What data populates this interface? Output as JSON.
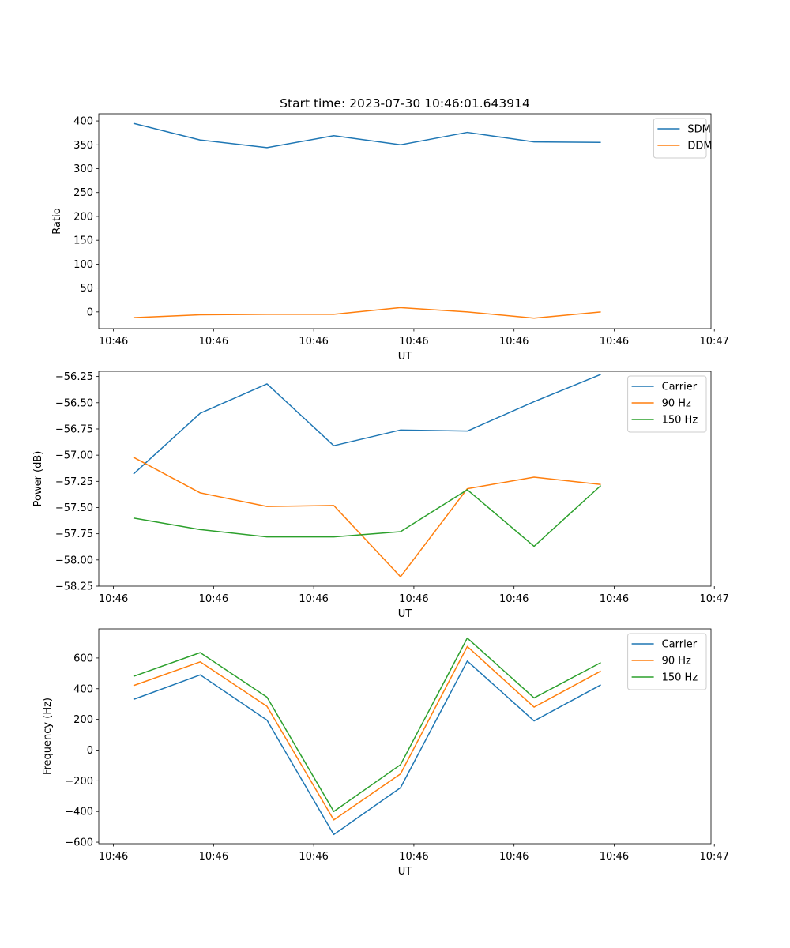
{
  "figure": {
    "title": "Start time: 2023-07-30 10:46:01.643914"
  },
  "colors": {
    "blue": "#1f77b4",
    "orange": "#ff7f0e",
    "green": "#2ca02c"
  },
  "chart_data": [
    {
      "type": "line",
      "title": "Start time: 2023-07-30 10:46:01.643914",
      "xlabel": "UT",
      "ylabel": "Ratio",
      "x": [
        1,
        2,
        3,
        4,
        5,
        6,
        7,
        8
      ],
      "xlim": [
        0.48,
        9.65
      ],
      "xticks": [
        0.7,
        2.2,
        3.7,
        5.2,
        6.7,
        8.2,
        9.7
      ],
      "xtick_labels": [
        "10:46",
        "10:46",
        "10:46",
        "10:46",
        "10:46",
        "10:46",
        "10:47"
      ],
      "ylim": [
        -35,
        415
      ],
      "yticks": [
        0,
        50,
        100,
        150,
        200,
        250,
        300,
        350,
        400
      ],
      "legend": "top-right",
      "series": [
        {
          "name": "SDM",
          "color": "#1f77b4",
          "values": [
            395,
            360,
            344,
            369,
            350,
            376,
            356,
            355
          ]
        },
        {
          "name": "DDM",
          "color": "#ff7f0e",
          "values": [
            -12,
            -6,
            -5,
            -5,
            9,
            0,
            -13,
            0
          ]
        }
      ]
    },
    {
      "type": "line",
      "title": "",
      "xlabel": "UT",
      "ylabel": "Power (dB)",
      "x": [
        1,
        2,
        3,
        4,
        5,
        6,
        7,
        8
      ],
      "xlim": [
        0.48,
        9.65
      ],
      "xticks": [
        0.7,
        2.2,
        3.7,
        5.2,
        6.7,
        8.2,
        9.7
      ],
      "xtick_labels": [
        "10:46",
        "10:46",
        "10:46",
        "10:46",
        "10:46",
        "10:46",
        "10:47"
      ],
      "ylim": [
        -58.25,
        -56.2
      ],
      "yticks": [
        -58.25,
        -58.0,
        -57.75,
        -57.5,
        -57.25,
        -57.0,
        -56.75,
        -56.5,
        -56.25
      ],
      "ytick_labels": [
        "−58.25",
        "−58.00",
        "−57.75",
        "−57.50",
        "−57.25",
        "−57.00",
        "−56.75",
        "−56.50",
        "−56.25"
      ],
      "legend": "top-right",
      "series": [
        {
          "name": "Carrier",
          "color": "#1f77b4",
          "values": [
            -57.18,
            -56.6,
            -56.32,
            -56.91,
            -56.76,
            -56.77,
            -56.49,
            -56.23
          ]
        },
        {
          "name": "90 Hz",
          "color": "#ff7f0e",
          "values": [
            -57.02,
            -57.36,
            -57.49,
            -57.48,
            -58.16,
            -57.32,
            -57.21,
            -57.28
          ]
        },
        {
          "name": "150 Hz",
          "color": "#2ca02c",
          "values": [
            -57.6,
            -57.71,
            -57.78,
            -57.78,
            -57.73,
            -57.33,
            -57.87,
            -57.29
          ]
        }
      ]
    },
    {
      "type": "line",
      "title": "",
      "xlabel": "UT",
      "ylabel": "Frequency (Hz)",
      "x": [
        1,
        2,
        3,
        4,
        5,
        6,
        7,
        8
      ],
      "xlim": [
        0.48,
        9.65
      ],
      "xticks": [
        0.7,
        2.2,
        3.7,
        5.2,
        6.7,
        8.2,
        9.7
      ],
      "xtick_labels": [
        "10:46",
        "10:46",
        "10:46",
        "10:46",
        "10:46",
        "10:46",
        "10:47"
      ],
      "ylim": [
        -610,
        790
      ],
      "yticks": [
        -600,
        -400,
        -200,
        0,
        200,
        400,
        600
      ],
      "ytick_labels": [
        "−600",
        "−400",
        "−200",
        "0",
        "200",
        "400",
        "600"
      ],
      "legend": "top-right",
      "series": [
        {
          "name": "Carrier",
          "color": "#1f77b4",
          "values": [
            330,
            490,
            195,
            -550,
            -245,
            580,
            190,
            425
          ]
        },
        {
          "name": "90 Hz",
          "color": "#ff7f0e",
          "values": [
            420,
            575,
            285,
            -455,
            -155,
            675,
            280,
            515
          ]
        },
        {
          "name": "150 Hz",
          "color": "#2ca02c",
          "values": [
            480,
            635,
            345,
            -400,
            -95,
            730,
            340,
            570
          ]
        }
      ]
    }
  ]
}
